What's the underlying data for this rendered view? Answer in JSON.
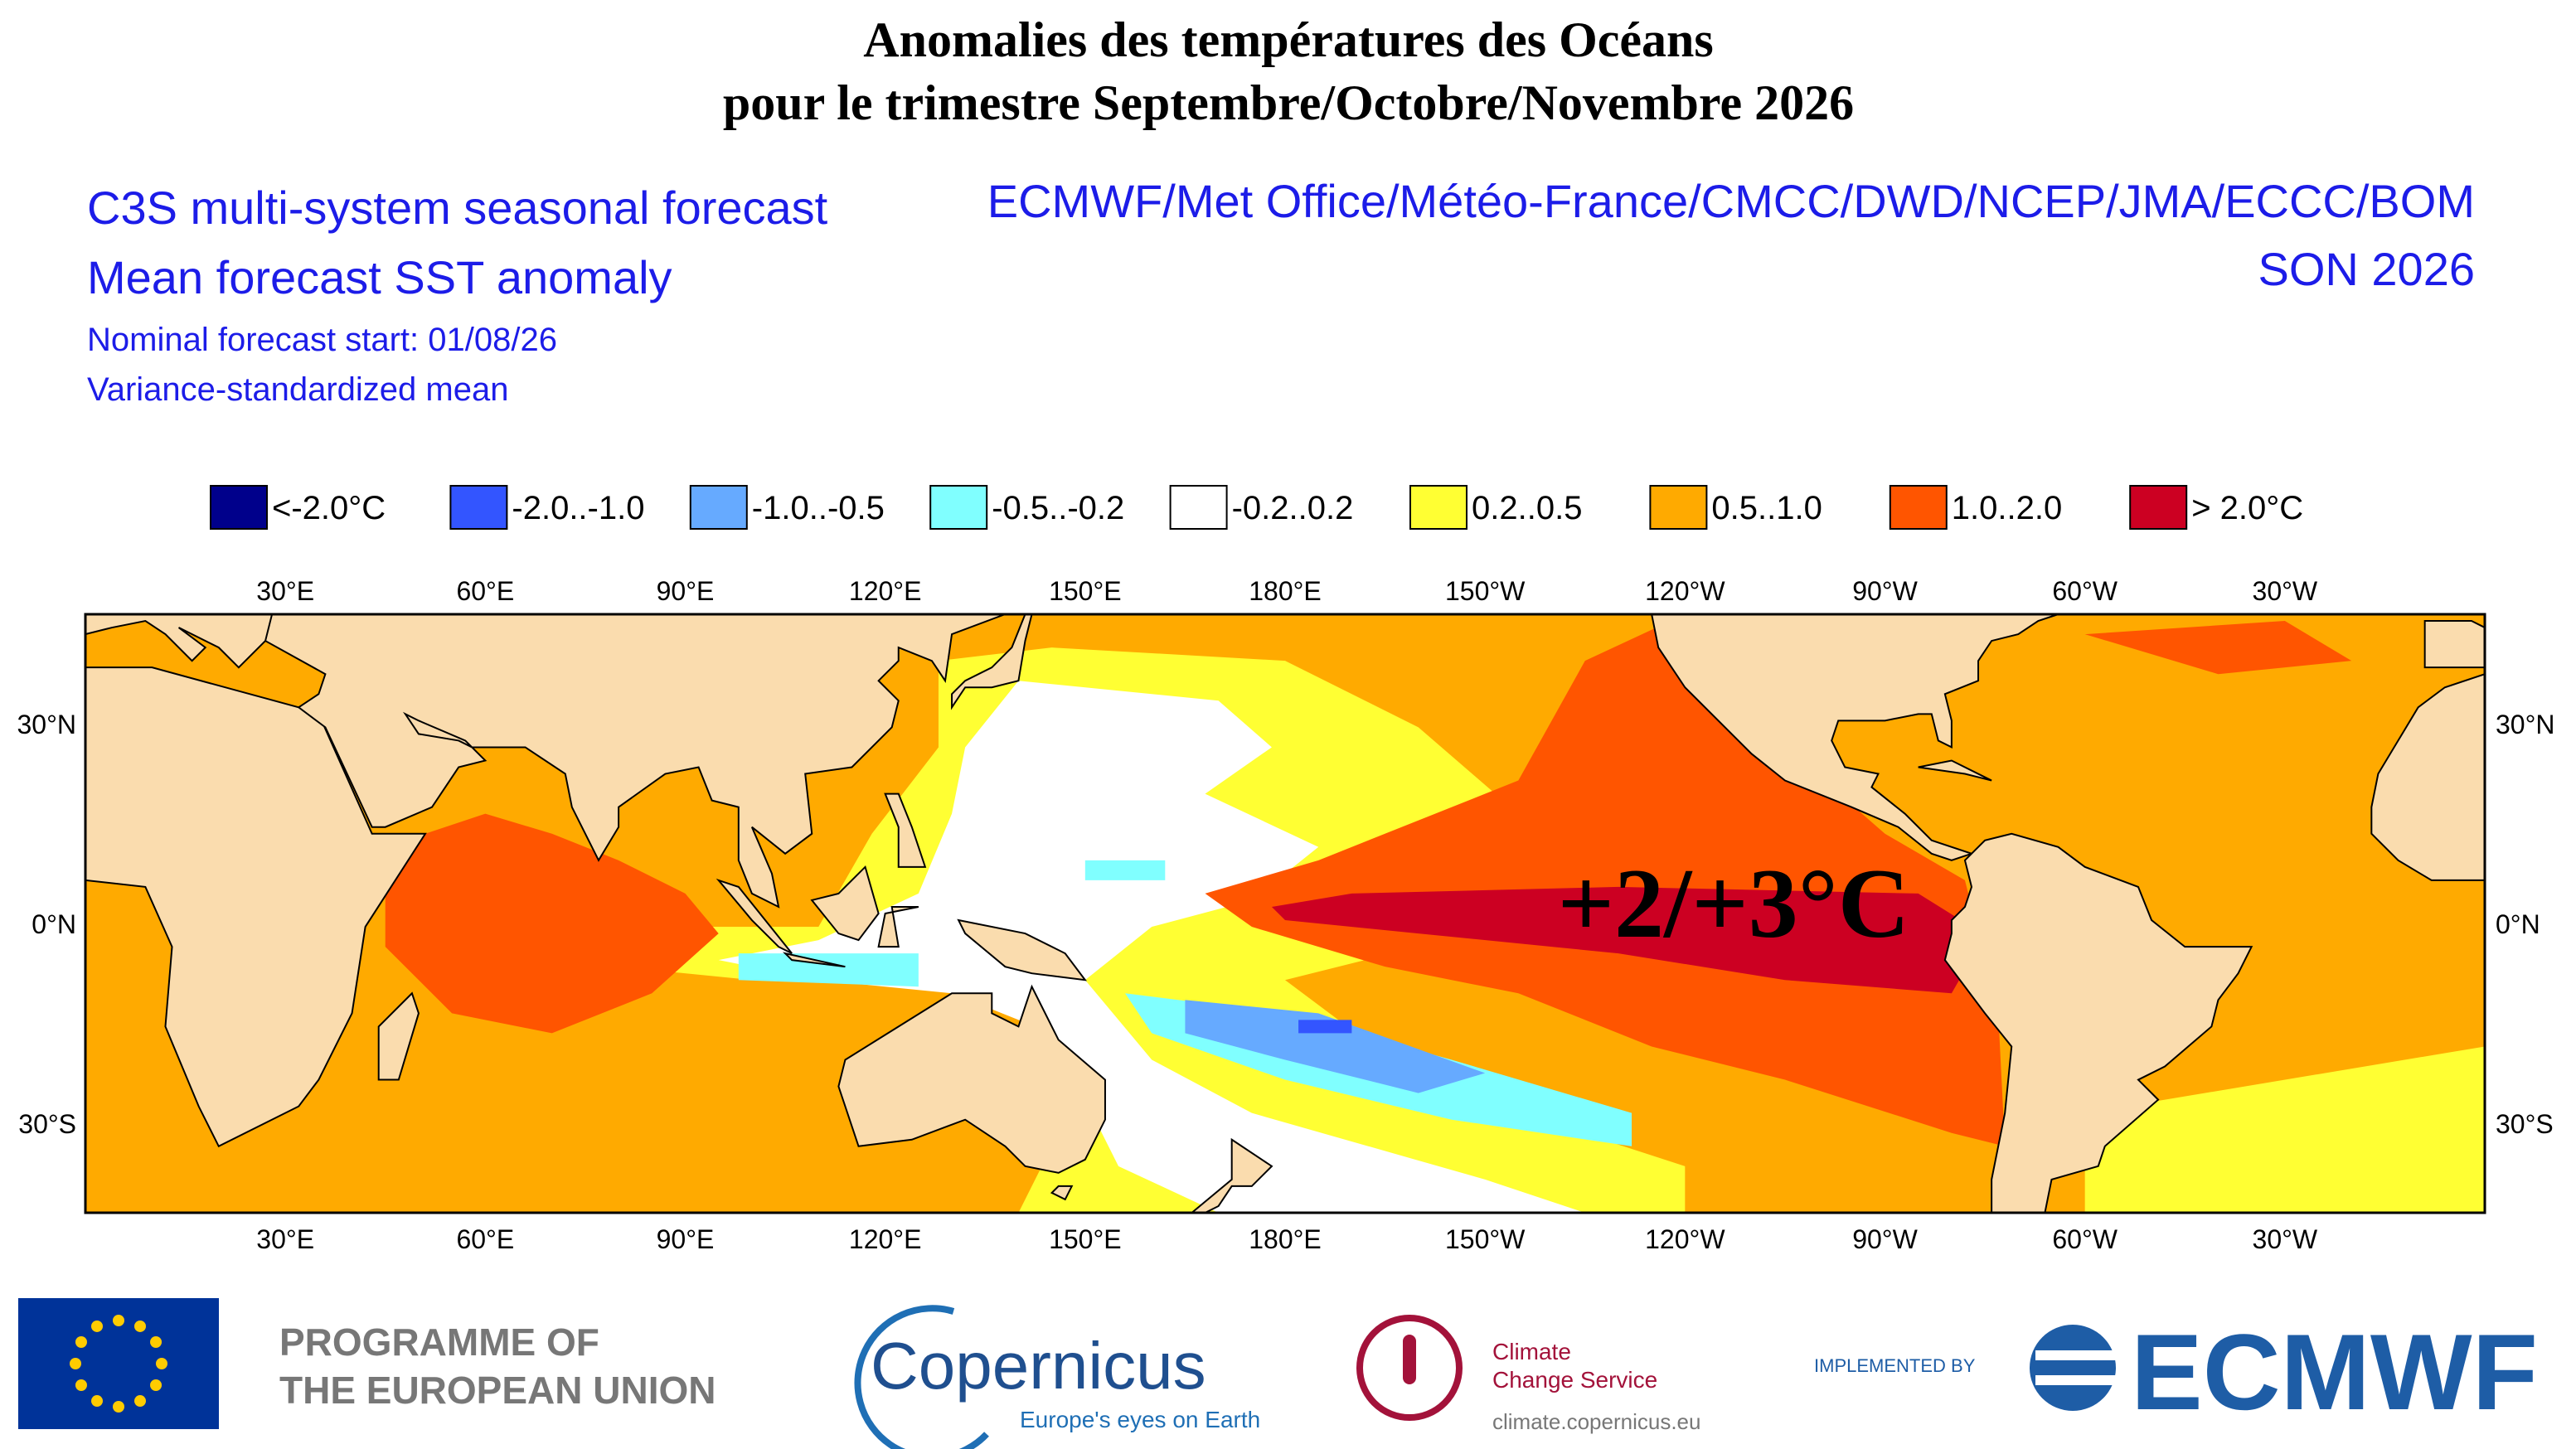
{
  "header": {
    "title_line1": "Anomalies des températures des Océans",
    "title_line2": "pour le trimestre Septembre/Octobre/Novembre 2026"
  },
  "info": {
    "left": [
      "C3S multi-system seasonal forecast",
      "Mean forecast SST anomaly",
      "Nominal forecast start: 01/08/26",
      "Variance-standardized mean"
    ],
    "right": [
      "ECMWF/Met Office/Météo-France/CMCC/DWD/NCEP/JMA/ECCC/BOM",
      "SON 2026"
    ]
  },
  "legend": [
    {
      "label": "<-2.0°C",
      "color": "#00008b"
    },
    {
      "label": "-2.0..-1.0",
      "color": "#3355ff"
    },
    {
      "label": "-1.0..-0.5",
      "color": "#66aaff"
    },
    {
      "label": "-0.5..-0.2",
      "color": "#80ffff"
    },
    {
      "label": "-0.2..0.2",
      "color": "#ffffff"
    },
    {
      "label": "0.2..0.5",
      "color": "#ffff33"
    },
    {
      "label": "0.5..1.0",
      "color": "#ffaa00"
    },
    {
      "label": "1.0..2.0",
      "color": "#ff5500"
    },
    {
      "label": "> 2.0°C",
      "color": "#cc0022"
    }
  ],
  "map": {
    "lon_labels": [
      "30°E",
      "60°E",
      "90°E",
      "120°E",
      "150°E",
      "180°E",
      "150°W",
      "120°W",
      "90°W",
      "60°W",
      "30°W"
    ],
    "lat_labels": [
      "30°N",
      "0°N",
      "30°S"
    ],
    "annotation": "+2/+3°C"
  },
  "footer": {
    "eu": [
      "PROGRAMME OF",
      "THE EUROPEAN UNION"
    ],
    "copernicus": "Copernicus",
    "copernicus_tagline": "Europe's eyes on Earth",
    "c3s": [
      "Climate",
      "Change Service"
    ],
    "c3s_url": "climate.copernicus.eu",
    "implemented": "IMPLEMENTED BY",
    "ecmwf": "ECMWF"
  }
}
